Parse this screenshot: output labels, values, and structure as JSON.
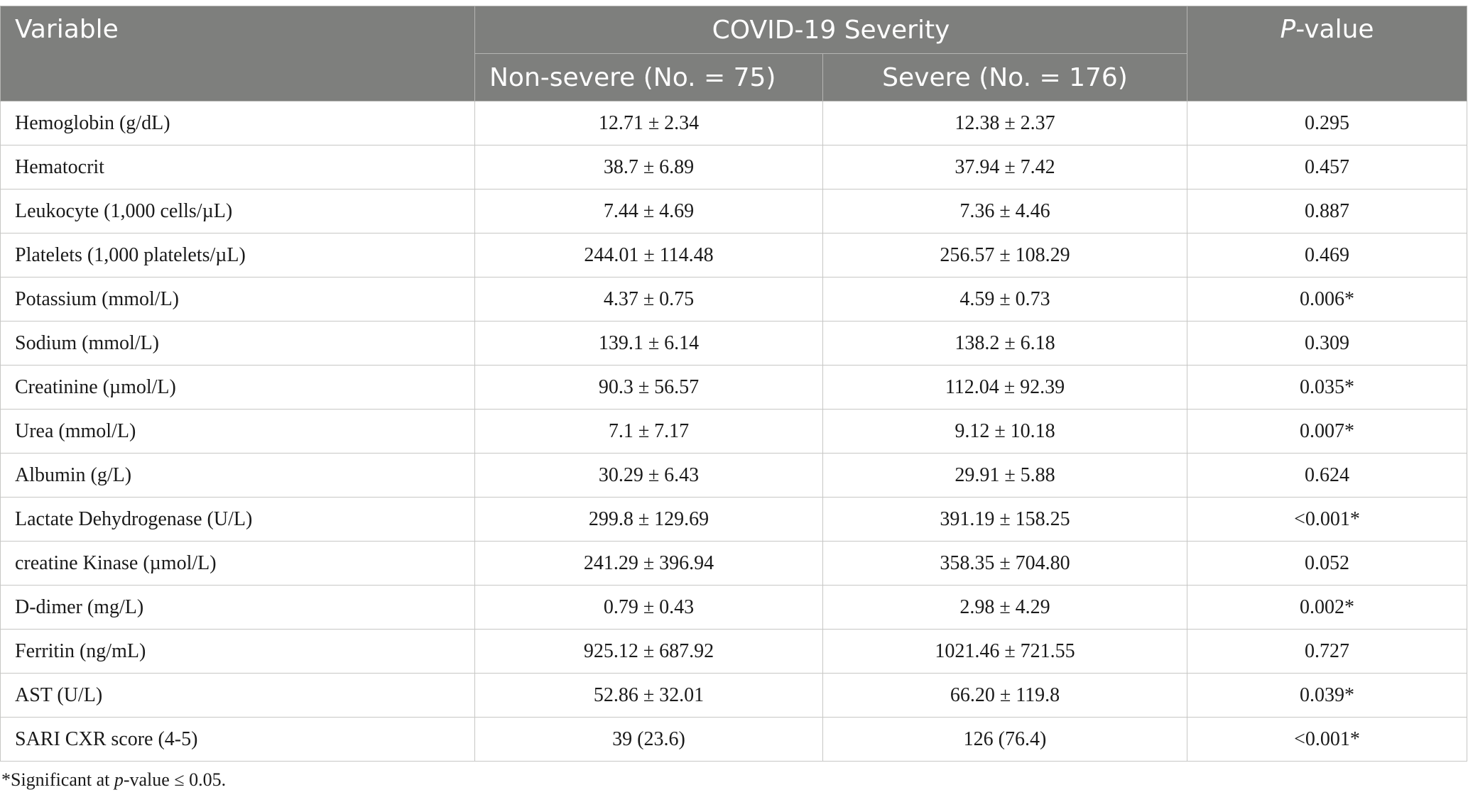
{
  "header": {
    "variable": "Variable",
    "severity": "COVID-19 Severity",
    "pvalue_italic": "P",
    "pvalue_rest": "-value",
    "nonsevere": "Non-severe (No. = 75)",
    "severe": "Severe (No. = 176)"
  },
  "rows": [
    {
      "variable": "Hemoglobin (g/dL)",
      "nonsevere": "12.71 ± 2.34",
      "severe": "12.38 ± 2.37",
      "p": "0.295"
    },
    {
      "variable": "Hematocrit",
      "nonsevere": "38.7 ± 6.89",
      "severe": "37.94 ± 7.42",
      "p": "0.457"
    },
    {
      "variable": "Leukocyte (1,000 cells/µL)",
      "nonsevere": "7.44 ± 4.69",
      "severe": "7.36 ± 4.46",
      "p": "0.887"
    },
    {
      "variable": "Platelets (1,000 platelets/µL)",
      "nonsevere": "244.01 ± 114.48",
      "severe": "256.57 ± 108.29",
      "p": "0.469"
    },
    {
      "variable": "Potassium (mmol/L)",
      "nonsevere": "4.37 ± 0.75",
      "severe": "4.59 ± 0.73",
      "p": "0.006*"
    },
    {
      "variable": "Sodium (mmol/L)",
      "nonsevere": "139.1 ± 6.14",
      "severe": "138.2 ± 6.18",
      "p": "0.309"
    },
    {
      "variable": "Creatinine (µmol/L)",
      "nonsevere": "90.3 ± 56.57",
      "severe": "112.04 ± 92.39",
      "p": "0.035*"
    },
    {
      "variable": "Urea (mmol/L)",
      "nonsevere": "7.1 ± 7.17",
      "severe": "9.12 ± 10.18",
      "p": "0.007*"
    },
    {
      "variable": "Albumin (g/L)",
      "nonsevere": "30.29 ± 6.43",
      "severe": "29.91 ± 5.88",
      "p": "0.624"
    },
    {
      "variable": "Lactate Dehydrogenase (U/L)",
      "nonsevere": "299.8 ± 129.69",
      "severe": "391.19 ± 158.25",
      "p": "<0.001*"
    },
    {
      "variable": "creatine Kinase (µmol/L)",
      "nonsevere": "241.29 ± 396.94",
      "severe": "358.35 ± 704.80",
      "p": "0.052"
    },
    {
      "variable": "D-dimer (mg/L)",
      "nonsevere": "0.79 ± 0.43",
      "severe": "2.98 ± 4.29",
      "p": "0.002*"
    },
    {
      "variable": "Ferritin (ng/mL)",
      "nonsevere": "925.12 ± 687.92",
      "severe": "1021.46 ± 721.55",
      "p": "0.727"
    },
    {
      "variable": "AST (U/L)",
      "nonsevere": "52.86 ± 32.01",
      "severe": "66.20 ± 119.8",
      "p": "0.039*"
    },
    {
      "variable": "SARI CXR score (4-5)",
      "nonsevere": "39 (23.6)",
      "severe": "126 (76.4)",
      "p": "<0.001*"
    }
  ],
  "footnote": {
    "prefix": "*Significant at ",
    "italic": "p",
    "suffix": "-value ≤ 0.05."
  },
  "colors": {
    "header_bg": "#7e7f7d",
    "header_text": "#ffffff",
    "grid": "#c7c7c5"
  }
}
